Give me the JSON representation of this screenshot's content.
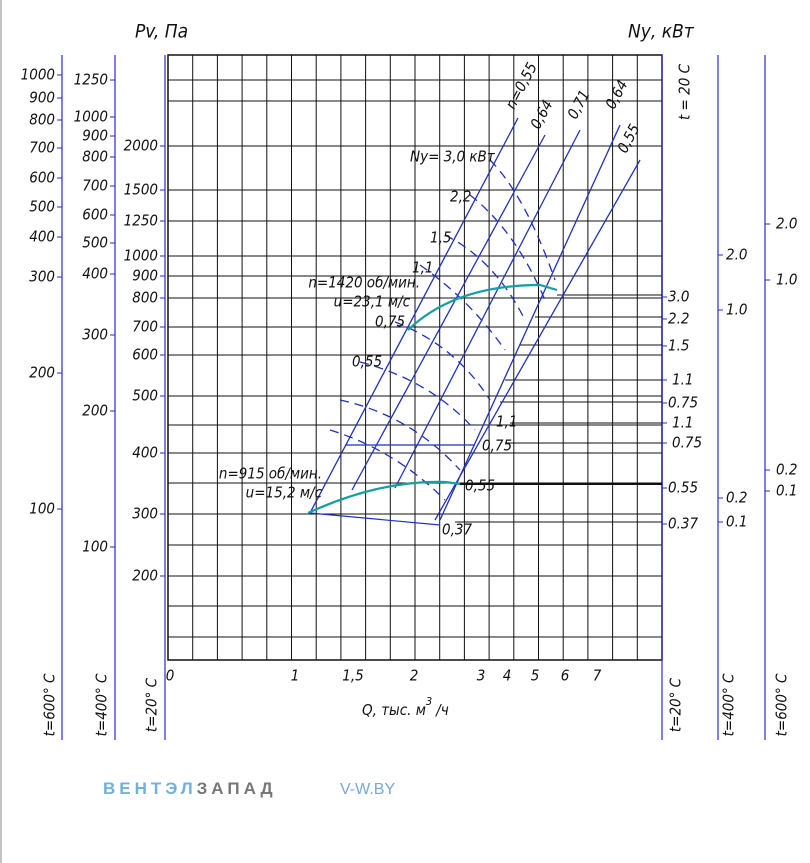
{
  "header": {
    "pressure_label": "Pv, Па",
    "power_label": "Nу, кВт",
    "temp_top": "t = 20 C"
  },
  "left_axes": [
    {
      "temp": "t=600° C",
      "ticks": [
        "1000",
        "900",
        "800",
        "700",
        "600",
        "500",
        "400",
        "300",
        "200",
        "100"
      ]
    },
    {
      "temp": "t=400° C",
      "ticks": [
        "1250",
        "1000",
        "900",
        "800",
        "700",
        "600",
        "500",
        "400",
        "300",
        "200",
        "100"
      ]
    },
    {
      "temp": "t=20° C",
      "ticks": [
        "2000",
        "1500",
        "1250",
        "1000",
        "900",
        "800",
        "700",
        "600",
        "500",
        "400",
        "300",
        "200"
      ]
    }
  ],
  "right_axes": [
    {
      "temp": "t=20° C",
      "ticks": [
        "3.0",
        "2.2",
        "1.5",
        "1.1",
        "0.75",
        "1.1",
        "0.75",
        "0.55",
        "0.37"
      ]
    },
    {
      "temp": "t=400° C",
      "ticks": [
        "2.0",
        "1.0",
        "0.2",
        "0.1"
      ]
    },
    {
      "temp": "t=600° C",
      "ticks": [
        "2.0",
        "1.0",
        "0.2",
        "0.1"
      ]
    }
  ],
  "x_axis": {
    "label": "Q, тыс. м",
    "label_sup": "3",
    "label_end": "/ч",
    "ticks": [
      "0",
      "1",
      "1,5",
      "2",
      "3",
      "4",
      "5",
      "6",
      "7"
    ]
  },
  "efficiency_labels": [
    "n=0,55",
    "0,64",
    "0,71",
    "0,64",
    "0,55"
  ],
  "power_labels_upper": [
    "Nу= 3,0 кВт",
    "2,2",
    "1,5",
    "1,1",
    "0,75",
    "0,55"
  ],
  "power_labels_lower": [
    "1,1",
    "0,75",
    "0,55",
    "0,37"
  ],
  "speed_labels": [
    "n=1420 об/мин.",
    "u=23,1 м/с",
    "n=915 об/мин.",
    "u=15,2 м/с"
  ],
  "footer": {
    "brand_a": "ВЕНТЭЛ",
    "brand_b": "ЗАПАД",
    "site": "V-W.BY"
  }
}
